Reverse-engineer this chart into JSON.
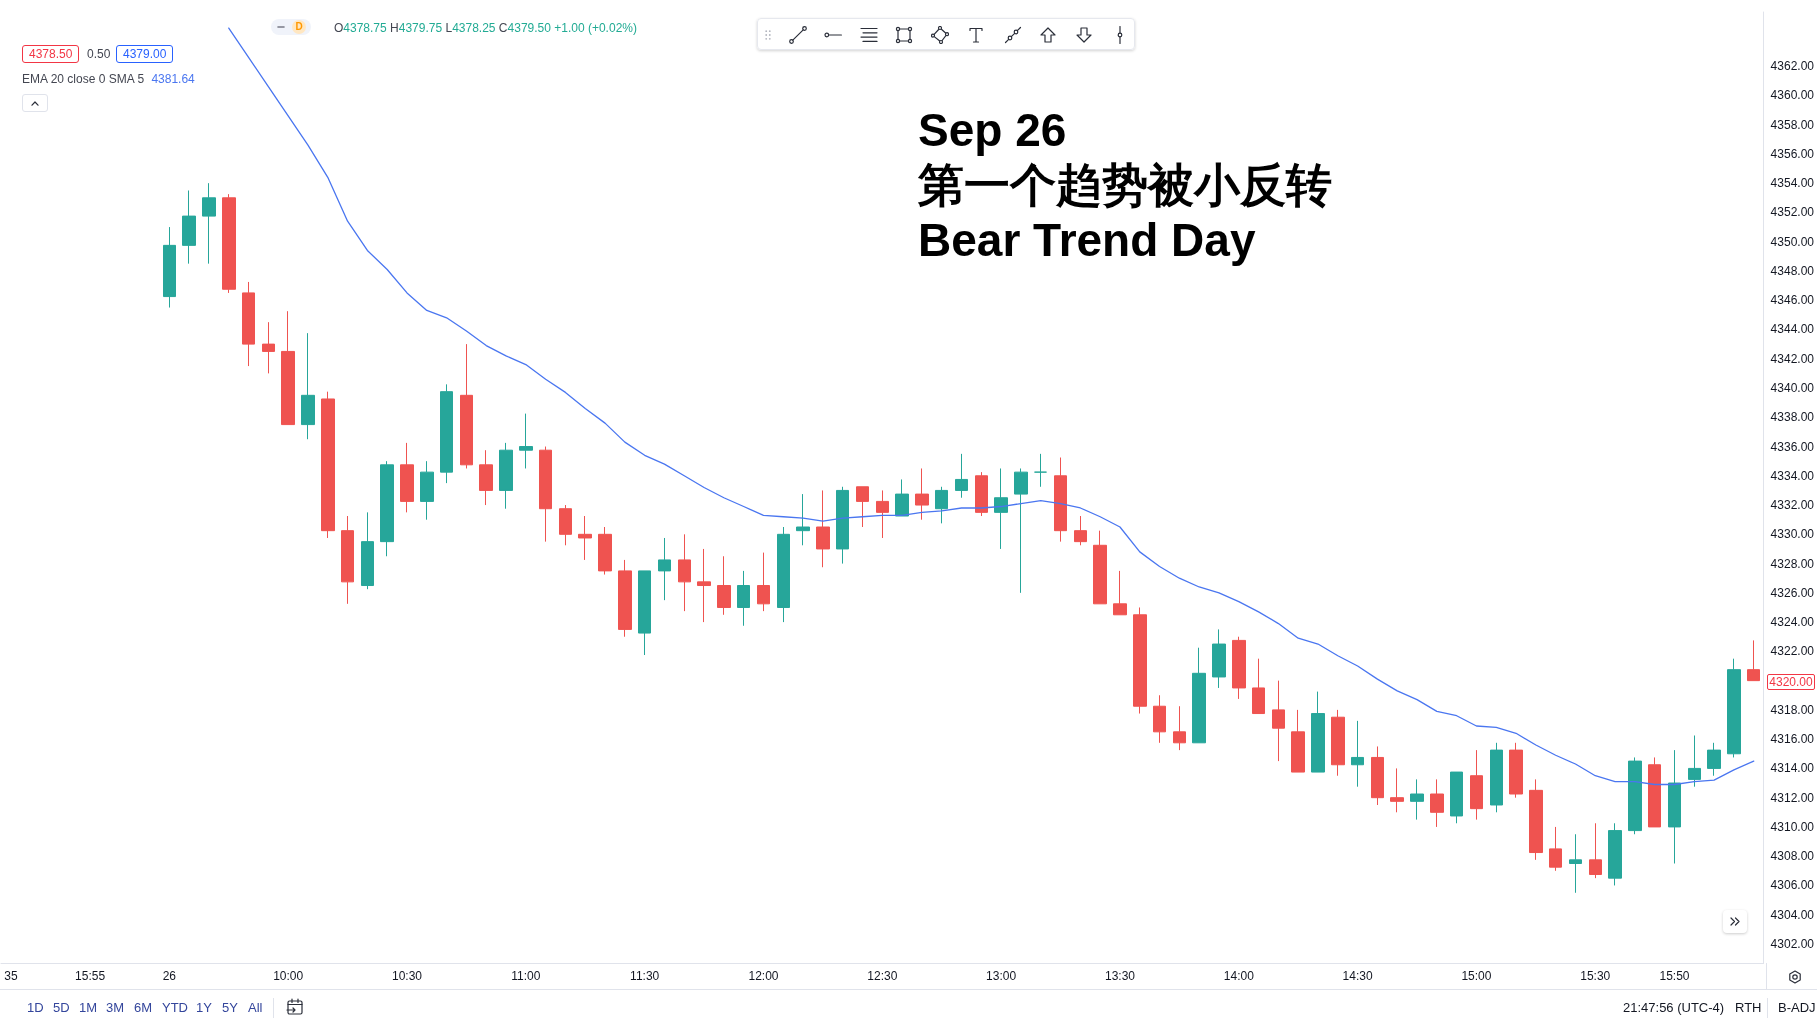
{
  "chart_data": {
    "type": "candlestick",
    "title": "Sep 26",
    "subtitle": "第一个趋势被小反转\nBear Trend Day",
    "categories": [
      "35",
      null,
      null,
      null,
      "15:55",
      null,
      null,
      null,
      "26",
      null,
      null,
      null,
      null,
      null,
      "10:00",
      null,
      null,
      null,
      null,
      null,
      "10:30",
      null,
      null,
      null,
      null,
      null,
      "11:00",
      null,
      null,
      null,
      null,
      null,
      "11:30",
      null,
      null,
      null,
      null,
      null,
      "12:00",
      null,
      null,
      null,
      null,
      null,
      "12:30",
      null,
      null,
      null,
      null,
      null,
      "13:00",
      null,
      null,
      null,
      null,
      null,
      "13:30",
      null,
      null,
      null,
      null,
      null,
      "14:00",
      null,
      null,
      null,
      null,
      null,
      "14:30",
      null,
      null,
      null,
      null,
      null,
      "15:00",
      null,
      null,
      null,
      null,
      null,
      "15:30",
      null,
      null,
      null,
      "15:50",
      null,
      null,
      null,
      null
    ],
    "series": [
      {
        "ohlc": [
          null,
          null,
          null,
          null,
          null,
          null,
          null,
          null,
          [
            4346.25,
            4351.0,
            4345.5,
            4349.75
          ],
          [
            4349.75,
            4353.5,
            4348.5,
            4351.75
          ],
          [
            4351.75,
            4354.0,
            4348.5,
            4353.0
          ],
          [
            4353.0,
            4353.25,
            4346.5,
            4346.75
          ],
          [
            4346.5,
            4347.25,
            4341.5,
            4343.0
          ],
          [
            4343.0,
            4344.5,
            4341.0,
            4342.5
          ],
          [
            4342.5,
            4345.25,
            4337.5,
            4337.5
          ],
          [
            4337.5,
            4343.75,
            4336.5,
            4339.5
          ],
          [
            4339.25,
            4339.75,
            4329.75,
            4330.25
          ],
          [
            4330.25,
            4331.25,
            4325.25,
            4326.75
          ],
          [
            4326.5,
            4331.5,
            4326.25,
            4329.5
          ],
          [
            4329.5,
            4335.0,
            4328.5,
            4334.75
          ],
          [
            4334.75,
            4336.25,
            4331.5,
            4332.25
          ],
          [
            4332.25,
            4335.0,
            4331.0,
            4334.25
          ],
          [
            4334.25,
            4340.25,
            4333.5,
            4339.75
          ],
          [
            4339.5,
            4343.0,
            4334.5,
            4334.75
          ],
          [
            4334.75,
            4335.75,
            4332.0,
            4333.0
          ],
          [
            4333.0,
            4336.25,
            4331.75,
            4335.75
          ],
          [
            4335.75,
            4338.25,
            4334.5,
            4336.0
          ],
          [
            4335.75,
            4336.0,
            4329.5,
            4331.75
          ],
          [
            4331.75,
            4332.0,
            4329.25,
            4330.0
          ],
          [
            4330.0,
            4331.25,
            4328.25,
            4329.75
          ],
          [
            4330.0,
            4330.5,
            4327.25,
            4327.5
          ],
          [
            4327.5,
            4328.25,
            4323.0,
            4323.5
          ],
          [
            4323.25,
            4327.5,
            4321.75,
            4327.5
          ],
          [
            4327.5,
            4329.75,
            4325.5,
            4328.25
          ],
          [
            4328.25,
            4330.0,
            4324.75,
            4326.75
          ],
          [
            4326.75,
            4329.0,
            4324.0,
            4326.5
          ],
          [
            4326.5,
            4328.5,
            4324.5,
            4325.0
          ],
          [
            4325.0,
            4327.5,
            4323.75,
            4326.5
          ],
          [
            4326.5,
            4328.75,
            4324.75,
            4325.25
          ],
          [
            4325.0,
            4330.5,
            4324.0,
            4330.0
          ],
          [
            4330.25,
            4332.75,
            4329.25,
            4330.5
          ],
          [
            4330.5,
            4333.0,
            4327.75,
            4329.0
          ],
          [
            4329.0,
            4333.25,
            4328.0,
            4333.0
          ],
          [
            4333.25,
            4333.25,
            4330.5,
            4332.25
          ],
          [
            4332.25,
            4333.0,
            4329.75,
            4331.5
          ],
          [
            4331.25,
            4333.75,
            4331.25,
            4332.75
          ],
          [
            4332.75,
            4334.5,
            4331.0,
            4332.0
          ],
          [
            4331.75,
            4333.25,
            4330.75,
            4333.0
          ],
          [
            4333.0,
            4335.5,
            4332.5,
            4333.75
          ],
          [
            4334.0,
            4334.25,
            4331.25,
            4331.5
          ],
          [
            4331.5,
            4334.5,
            4329.0,
            4332.5
          ],
          [
            4332.75,
            4334.5,
            4326.0,
            4334.25
          ],
          [
            4334.25,
            4335.5,
            4333.25,
            4334.25
          ],
          [
            4334.0,
            4335.25,
            4329.5,
            4330.25
          ],
          [
            4330.25,
            4331.25,
            4329.25,
            4329.5
          ],
          [
            4329.25,
            4330.25,
            4325.25,
            4325.25
          ],
          [
            4325.25,
            4327.5,
            4324.5,
            4324.5
          ],
          [
            4324.5,
            4325.0,
            4317.75,
            4318.25
          ],
          [
            4318.25,
            4319.0,
            4315.75,
            4316.5
          ],
          [
            4316.5,
            4318.25,
            4315.25,
            4315.75
          ],
          [
            4315.75,
            4322.25,
            4315.75,
            4320.5
          ],
          [
            4320.25,
            4323.5,
            4319.5,
            4322.5
          ],
          [
            4322.75,
            4323.0,
            4318.75,
            4319.5
          ],
          [
            4319.5,
            4321.5,
            4317.75,
            4317.75
          ],
          [
            4318.0,
            4320.0,
            4314.5,
            4316.75
          ],
          [
            4316.5,
            4318.0,
            4313.75,
            4313.75
          ],
          [
            4313.75,
            4319.25,
            4313.75,
            4317.75
          ],
          [
            4317.5,
            4318.0,
            4313.5,
            4314.25
          ],
          [
            4314.25,
            4317.25,
            4312.75,
            4314.75
          ],
          [
            4314.75,
            4315.5,
            4311.5,
            4312.0
          ],
          [
            4312.0,
            4314.0,
            4311.0,
            4311.75
          ],
          [
            4311.75,
            4313.25,
            4310.5,
            4312.25
          ],
          [
            4312.25,
            4313.25,
            4310.0,
            4311.0
          ],
          [
            4310.75,
            4313.75,
            4310.25,
            4313.75
          ],
          [
            4313.5,
            4315.25,
            4310.5,
            4311.25
          ],
          [
            4311.5,
            4315.75,
            4311.0,
            4315.25
          ],
          [
            4315.25,
            4315.75,
            4312.0,
            4312.25
          ],
          [
            4312.5,
            4313.25,
            4307.75,
            4308.25
          ],
          [
            4308.5,
            4310.0,
            4307.0,
            4307.25
          ],
          [
            4307.5,
            4309.5,
            4305.5,
            4307.75
          ],
          [
            4307.75,
            4310.25,
            4306.5,
            4306.75
          ],
          [
            4306.5,
            4310.25,
            4306.0,
            4309.75
          ],
          [
            4309.75,
            4314.75,
            4309.5,
            4314.5
          ],
          [
            4314.25,
            4314.75,
            4310.0,
            4310.0
          ],
          [
            4310.0,
            4315.25,
            4307.5,
            4313.0
          ],
          [
            4313.25,
            4316.25,
            4312.75,
            4314.0
          ],
          [
            4314.0,
            4315.75,
            4313.5,
            4315.25
          ],
          [
            4315.0,
            4321.5,
            4314.75,
            4320.75
          ],
          [
            4320.75,
            4322.75,
            4320.0,
            4320.0
          ]
        ],
        "colors": [
          null,
          null,
          null,
          null,
          null,
          null,
          null,
          null,
          "#26a69a",
          "#26a69a",
          "#26a69a",
          "#ef5350",
          "#ef5350",
          "#ef5350",
          "#ef5350",
          "#26a69a",
          "#ef5350",
          "#ef5350",
          "#26a69a",
          "#26a69a",
          "#ef5350",
          "#26a69a",
          "#26a69a",
          "#ef5350",
          "#ef5350",
          "#26a69a",
          "#26a69a",
          "#ef5350",
          "#ef5350",
          "#ef5350",
          "#ef5350",
          "#ef5350",
          "#26a69a",
          "#26a69a",
          "#ef5350",
          "#ef5350",
          "#ef5350",
          "#26a69a",
          "#ef5350",
          "#26a69a",
          "#26a69a",
          "#ef5350",
          "#26a69a",
          "#ef5350",
          "#ef5350",
          "#26a69a",
          "#ef5350",
          "#26a69a",
          "#26a69a",
          "#ef5350",
          "#26a69a",
          "#26a69a",
          "#26a69a",
          "#ef5350",
          "#ef5350",
          "#ef5350",
          "#ef5350",
          "#ef5350",
          "#ef5350",
          "#ef5350",
          "#26a69a",
          "#26a69a",
          "#ef5350",
          "#ef5350",
          "#ef5350",
          "#ef5350",
          "#26a69a",
          "#ef5350",
          "#26a69a",
          "#ef5350",
          "#ef5350",
          "#26a69a",
          "#ef5350",
          "#26a69a",
          "#ef5350",
          "#26a69a",
          "#ef5350",
          "#ef5350",
          "#ef5350",
          "#26a69a",
          "#ef5350",
          "#26a69a",
          "#26a69a",
          "#ef5350",
          "#26a69a",
          "#26a69a",
          "#26a69a",
          "#26a69a",
          "#ef5350"
        ]
      },
      {
        "type": "line",
        "name": "EMA 20 close 0 SMA 5",
        "color": "#4a76f0",
        "values": [
          null,
          null,
          null,
          null,
          null,
          null,
          null,
          null,
          null,
          null,
          null,
          4364.6,
          4362.6,
          4360.6,
          4358.6,
          4356.6,
          4354.4,
          4351.4,
          4349.4,
          4348.1,
          4346.5,
          4345.3,
          4344.8,
          4343.9,
          4342.9,
          4342.2,
          4341.6,
          4340.6,
          4339.7,
          4338.6,
          4337.6,
          4336.3,
          4335.4,
          4334.8,
          4334.0,
          4333.2,
          4332.5,
          4331.9,
          4331.3,
          4331.2,
          4331.1,
          4330.9,
          4331.1,
          4331.2,
          4331.3,
          4331.3,
          4331.5,
          4331.6,
          4331.8,
          4331.8,
          4331.9,
          4332.1,
          4332.3,
          4332.1,
          4331.8,
          4331.2,
          4330.5,
          4328.8,
          4327.8,
          4327.0,
          4326.4,
          4326.0,
          4325.4,
          4324.7,
          4323.9,
          4322.9,
          4322.5,
          4321.7,
          4321.0,
          4320.1,
          4319.3,
          4318.7,
          4317.9,
          4317.6,
          4316.9,
          4316.8,
          4316.4,
          4315.6,
          4314.9,
          4314.3,
          4313.5,
          4313.1,
          4313.1,
          4312.9,
          4312.9,
          4313.1,
          4313.2,
          4313.9,
          4314.5
        ]
      }
    ],
    "ylim": [
      4300.7,
      4365.7
    ],
    "yticks": [
      {
        "value": 4302,
        "label": "4302.00"
      },
      {
        "value": 4304,
        "label": "4304.00"
      },
      {
        "value": 4306,
        "label": "4306.00"
      },
      {
        "value": 4308,
        "label": "4308.00"
      },
      {
        "value": 4310,
        "label": "4310.00"
      },
      {
        "value": 4312,
        "label": "4312.00"
      },
      {
        "value": 4314,
        "label": "4314.00"
      },
      {
        "value": 4316,
        "label": "4316.00"
      },
      {
        "value": 4318,
        "label": "4318.00"
      },
      {
        "value": 4322,
        "label": "4322.00"
      },
      {
        "value": 4324,
        "label": "4324.00"
      },
      {
        "value": 4326,
        "label": "4326.00"
      },
      {
        "value": 4328,
        "label": "4328.00"
      },
      {
        "value": 4330,
        "label": "4330.00"
      },
      {
        "value": 4332,
        "label": "4332.00"
      },
      {
        "value": 4334,
        "label": "4334.00"
      },
      {
        "value": 4336,
        "label": "4336.00"
      },
      {
        "value": 4338,
        "label": "4338.00"
      },
      {
        "value": 4340,
        "label": "4340.00"
      },
      {
        "value": 4342,
        "label": "4342.00"
      },
      {
        "value": 4344,
        "label": "4344.00"
      },
      {
        "value": 4346,
        "label": "4346.00"
      },
      {
        "value": 4348,
        "label": "4348.00"
      },
      {
        "value": 4350,
        "label": "4350.00"
      },
      {
        "value": 4352,
        "label": "4352.00"
      },
      {
        "value": 4354,
        "label": "4354.00"
      },
      {
        "value": 4356,
        "label": "4356.00"
      },
      {
        "value": 4358,
        "label": "4358.00"
      },
      {
        "value": 4360,
        "label": "4360.00"
      },
      {
        "value": 4362,
        "label": "4362.00"
      }
    ],
    "grid": false,
    "legend": "top left",
    "marker": "none",
    "line_style": "solid",
    "annotations": [
      "D",
      "O4378.75 H4379.75 L4378.25 C4379.50 +1.00 (+0.02%)",
      "4378.50",
      "0.50",
      "4379.00",
      "4381.64",
      "4320.00",
      "1D",
      "5D",
      "1M",
      "3M",
      "6M",
      "YTD",
      "1Y",
      "5Y",
      "All",
      "21:47:56 (UTC-4)",
      "RTH",
      "B-ADJ"
    ]
  }
}
